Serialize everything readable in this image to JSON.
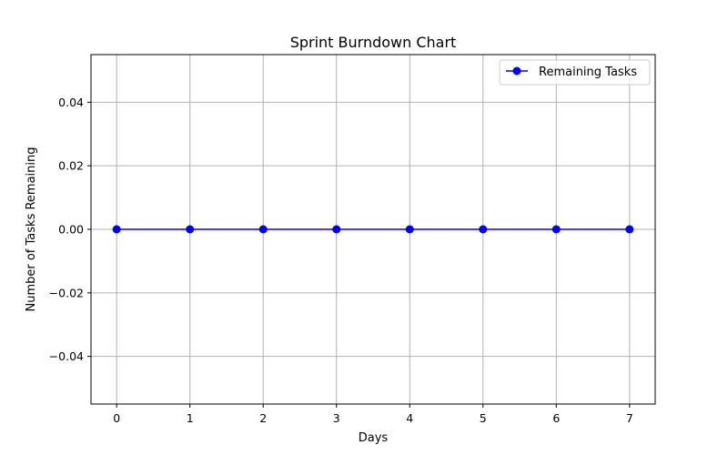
{
  "chart_data": {
    "type": "line",
    "title": "Sprint Burndown Chart",
    "xlabel": "Days",
    "ylabel": "Number of Tasks Remaining",
    "x": [
      0,
      1,
      2,
      3,
      4,
      5,
      6,
      7
    ],
    "series": [
      {
        "name": "Remaining Tasks",
        "values": [
          0,
          0,
          0,
          0,
          0,
          0,
          0,
          0
        ],
        "color": "#0000ff",
        "marker": "circle"
      }
    ],
    "xlim": [
      -0.35,
      7.35
    ],
    "ylim": [
      -0.055,
      0.055
    ],
    "xticks": [
      0,
      1,
      2,
      3,
      4,
      5,
      6,
      7
    ],
    "xtick_labels": [
      "0",
      "1",
      "2",
      "3",
      "4",
      "5",
      "6",
      "7"
    ],
    "yticks": [
      -0.04,
      -0.02,
      0.0,
      0.02,
      0.04
    ],
    "ytick_labels": [
      "−0.04",
      "−0.02",
      "0.00",
      "0.02",
      "0.04"
    ],
    "grid": true,
    "grid_color": "#b0b0b0",
    "legend_position": "top-right"
  }
}
